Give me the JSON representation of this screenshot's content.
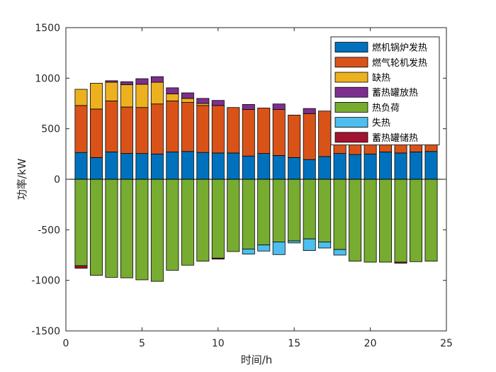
{
  "chart_data": {
    "type": "bar",
    "stacked": true,
    "title": "",
    "xlabel": "时间/h",
    "ylabel": "功率/kW",
    "xlim": [
      0,
      25
    ],
    "ylim": [
      -1500,
      1500
    ],
    "xticks": [
      0,
      5,
      10,
      15,
      20,
      25
    ],
    "yticks": [
      -1500,
      -1000,
      -500,
      0,
      500,
      1000,
      1500
    ],
    "x": [
      1,
      2,
      3,
      4,
      5,
      6,
      7,
      8,
      9,
      10,
      11,
      12,
      13,
      14,
      15,
      16,
      17,
      18,
      19,
      20,
      21,
      22,
      23,
      24
    ],
    "legend_position": "top-right",
    "series": [
      {
        "name": "燃机锅炉发热",
        "color": "#0072BD",
        "sign": "positive",
        "values": [
          265,
          215,
          270,
          255,
          255,
          250,
          270,
          275,
          265,
          260,
          260,
          230,
          255,
          235,
          215,
          195,
          225,
          255,
          245,
          250,
          270,
          260,
          270,
          275
        ]
      },
      {
        "name": "燃气轮机发热",
        "color": "#D95319",
        "sign": "positive",
        "values": [
          465,
          480,
          505,
          460,
          455,
          495,
          505,
          485,
          465,
          470,
          450,
          460,
          450,
          455,
          420,
          455,
          450,
          440,
          420,
          420,
          410,
          430,
          440,
          445
        ]
      },
      {
        "name": "缺热",
        "color": "#EDB120",
        "sign": "positive",
        "values": [
          160,
          255,
          185,
          220,
          230,
          215,
          70,
          40,
          20,
          0,
          0,
          0,
          0,
          0,
          0,
          0,
          0,
          0,
          0,
          0,
          0,
          0,
          0,
          0
        ]
      },
      {
        "name": "蓄热罐放热",
        "color": "#7E2F8E",
        "sign": "positive",
        "values": [
          0,
          0,
          15,
          30,
          55,
          55,
          60,
          55,
          50,
          50,
          0,
          50,
          0,
          55,
          0,
          50,
          0,
          0,
          0,
          0,
          0,
          0,
          0,
          0
        ]
      },
      {
        "name": "热负荷",
        "color": "#77AC30",
        "sign": "negative",
        "values": [
          -855,
          -950,
          -970,
          -975,
          -995,
          -1010,
          -900,
          -850,
          -810,
          -780,
          -715,
          -690,
          -650,
          -620,
          -610,
          -590,
          -620,
          -695,
          -810,
          -820,
          -820,
          -820,
          -815,
          -810
        ]
      },
      {
        "name": "失热",
        "color": "#4DBEEE",
        "sign": "negative",
        "values": [
          0,
          0,
          0,
          0,
          0,
          0,
          0,
          0,
          0,
          0,
          0,
          -50,
          -60,
          -125,
          -20,
          -115,
          -60,
          -55,
          0,
          0,
          0,
          0,
          0,
          0
        ]
      },
      {
        "name": "蓄热罐储热",
        "color": "#A2142F",
        "sign": "negative",
        "values": [
          -25,
          0,
          0,
          0,
          0,
          0,
          0,
          0,
          0,
          -10,
          0,
          0,
          0,
          0,
          0,
          0,
          0,
          0,
          0,
          0,
          0,
          -10,
          0,
          0
        ]
      }
    ]
  }
}
